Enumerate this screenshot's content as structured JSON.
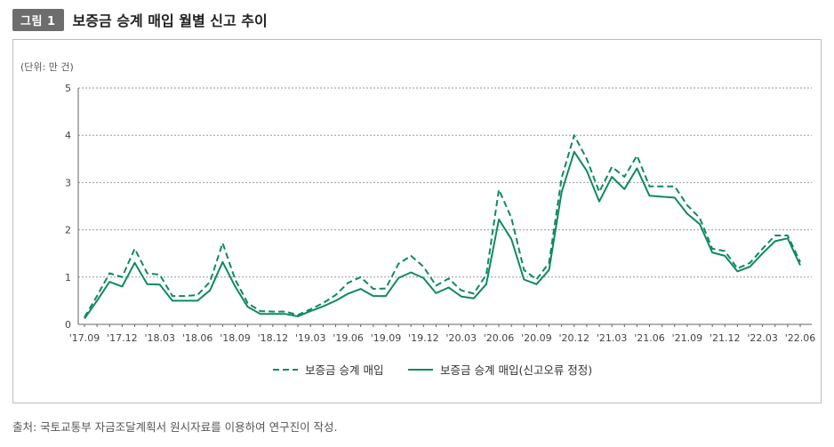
{
  "figure": {
    "badge": "그림 1",
    "title": "보증금 승계 매입 월별 신고 추이",
    "source": "출처: 국토교통부 자금조달계획서 원시자료를 이용하여 연구진이 작성."
  },
  "colors": {
    "series": "#0f8a5f",
    "grid": "#9a9a9a",
    "axis": "#666666"
  },
  "chart_data": {
    "type": "line",
    "unit_label": "(단위: 만 건)",
    "ylim": [
      0,
      5
    ],
    "yticks": [
      "0",
      "1",
      "2",
      "3",
      "4",
      "5"
    ],
    "x_tick_labels": [
      "'17.09",
      "'17.12",
      "'18.03",
      "'18.06",
      "'18.09",
      "'18.12",
      "'19.03",
      "'19.06",
      "'19.09",
      "'19.12",
      "'20.03",
      "'20.06",
      "'20.09",
      "'20.12",
      "'21.03",
      "'21.06",
      "'21.09",
      "'21.12",
      "'22.03",
      "'22.06"
    ],
    "x": [
      "'17.09",
      "'17.10",
      "'17.11",
      "'17.12",
      "'18.01",
      "'18.02",
      "'18.03",
      "'18.04",
      "'18.05",
      "'18.06",
      "'18.07",
      "'18.08",
      "'18.09",
      "'18.10",
      "'18.11",
      "'18.12",
      "'19.01",
      "'19.02",
      "'19.03",
      "'19.04",
      "'19.05",
      "'19.06",
      "'19.07",
      "'19.08",
      "'19.09",
      "'19.10",
      "'19.11",
      "'19.12",
      "'20.01",
      "'20.02",
      "'20.03",
      "'20.04",
      "'20.05",
      "'20.06",
      "'20.07",
      "'20.08",
      "'20.09",
      "'20.10",
      "'20.11",
      "'20.12",
      "'21.01",
      "'21.02",
      "'21.03",
      "'21.04",
      "'21.05",
      "'21.06",
      "'21.07",
      "'21.08",
      "'21.09",
      "'21.10",
      "'21.11",
      "'21.12",
      "'22.01",
      "'22.02",
      "'22.03",
      "'22.04",
      "'22.05",
      "'22.06"
    ],
    "series": [
      {
        "name": "보증금 승계 매입",
        "style": "dashed",
        "values": [
          0.15,
          0.6,
          1.08,
          1.0,
          1.6,
          1.08,
          1.05,
          0.6,
          0.6,
          0.62,
          0.9,
          1.72,
          0.95,
          0.45,
          0.28,
          0.27,
          0.27,
          0.2,
          0.32,
          0.45,
          0.62,
          0.88,
          1.0,
          0.75,
          0.76,
          1.28,
          1.45,
          1.22,
          0.82,
          0.97,
          0.72,
          0.65,
          1.05,
          2.85,
          2.25,
          1.15,
          0.95,
          1.3,
          3.1,
          4.0,
          3.5,
          2.8,
          3.33,
          3.12,
          3.57,
          2.92,
          2.92,
          2.92,
          2.52,
          2.25,
          1.6,
          1.55,
          1.18,
          1.3,
          1.6,
          1.88,
          1.88,
          1.32
        ]
      },
      {
        "name": "보증금 승계 매입(신고오류 정정)",
        "style": "solid",
        "values": [
          0.12,
          0.5,
          0.9,
          0.8,
          1.3,
          0.85,
          0.84,
          0.5,
          0.5,
          0.5,
          0.72,
          1.32,
          0.8,
          0.37,
          0.22,
          0.22,
          0.22,
          0.17,
          0.28,
          0.38,
          0.5,
          0.65,
          0.75,
          0.6,
          0.6,
          0.98,
          1.1,
          0.98,
          0.66,
          0.78,
          0.59,
          0.55,
          0.85,
          2.22,
          1.8,
          0.95,
          0.85,
          1.15,
          2.8,
          3.65,
          3.25,
          2.6,
          3.12,
          2.86,
          3.3,
          2.72,
          2.7,
          2.68,
          2.34,
          2.12,
          1.52,
          1.45,
          1.12,
          1.22,
          1.5,
          1.76,
          1.82,
          1.25
        ]
      }
    ],
    "legend_position": "bottom-center",
    "grid": "horizontal-dotted"
  }
}
